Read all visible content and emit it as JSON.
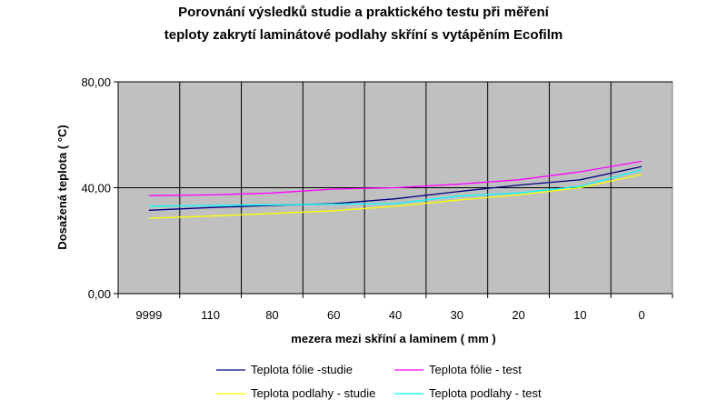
{
  "chart_data": {
    "type": "line",
    "title_lines": [
      "Porovnání výsledků studie a praktického testu při měření",
      "teploty zakrytí laminátové podlahy skříní s vytápěním Ecofilm"
    ],
    "xlabel": "mezera mezi skříní a laminem ( mm )",
    "ylabel": "Dosažená teplota ( °C)",
    "categories": [
      "9999",
      "110",
      "80",
      "60",
      "40",
      "30",
      "20",
      "10",
      "0"
    ],
    "y_ticks": [
      "0,00",
      "40,00",
      "80,00"
    ],
    "y_tick_values": [
      0,
      40,
      80
    ],
    "ylim": [
      0,
      80
    ],
    "grid": true,
    "plot_background": "#c0c0c0",
    "legend_position": "bottom",
    "series": [
      {
        "name": "Teplota fólie -studie",
        "color": "#000080",
        "values": [
          31.5,
          32.5,
          33.3,
          34.0,
          35.8,
          38.5,
          41.0,
          43.0,
          48.0
        ]
      },
      {
        "name": "Teplota fólie - test",
        "color": "#ff00ff",
        "values": [
          37.0,
          37.3,
          38.0,
          39.5,
          40.0,
          41.3,
          43.0,
          46.0,
          50.0
        ]
      },
      {
        "name": "Teplota podlahy - studie",
        "color": "#ffff00",
        "values": [
          28.5,
          29.3,
          30.3,
          31.3,
          33.0,
          35.3,
          37.3,
          40.0,
          45.0
        ]
      },
      {
        "name": "Teplota podlahy - test",
        "color": "#00ffff",
        "values": [
          33.0,
          33.3,
          33.5,
          33.8,
          34.0,
          36.8,
          38.0,
          40.5,
          46.8
        ]
      }
    ]
  }
}
